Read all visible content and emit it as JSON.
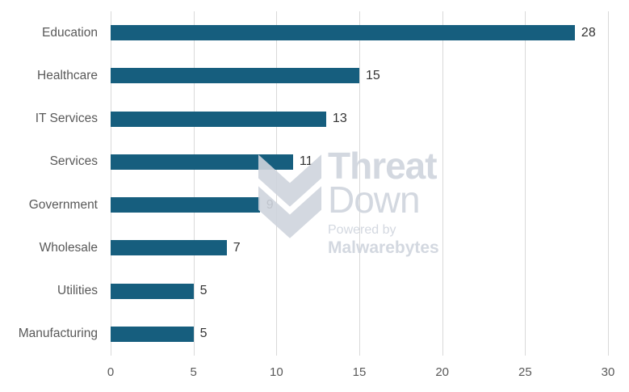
{
  "chart_data": {
    "type": "bar",
    "orientation": "horizontal",
    "title": "",
    "xlabel": "",
    "ylabel": "",
    "categories": [
      "Education",
      "Healthcare",
      "IT Services",
      "Services",
      "Government",
      "Wholesale",
      "Utilities",
      "Manufacturing"
    ],
    "values": [
      28,
      15,
      13,
      11,
      9,
      7,
      5,
      5
    ],
    "xlim": [
      0,
      30
    ],
    "xticks": [
      0,
      5,
      10,
      15,
      20,
      25,
      30
    ],
    "grid": true,
    "legend": false,
    "value_labels": true,
    "bar_color": "#165e7e"
  },
  "colors": {
    "bar": "#165e7e",
    "gridline": "#d9d9d9",
    "category_label": "#595959",
    "value_label": "#333333",
    "axis_label": "#595959",
    "watermark": "#cfd4dd"
  },
  "watermark": {
    "logo": "threatdown-chevron-icon",
    "line1": "Threat",
    "line2": "Down",
    "powered_by": "Powered by",
    "brand": "Malwarebytes"
  }
}
